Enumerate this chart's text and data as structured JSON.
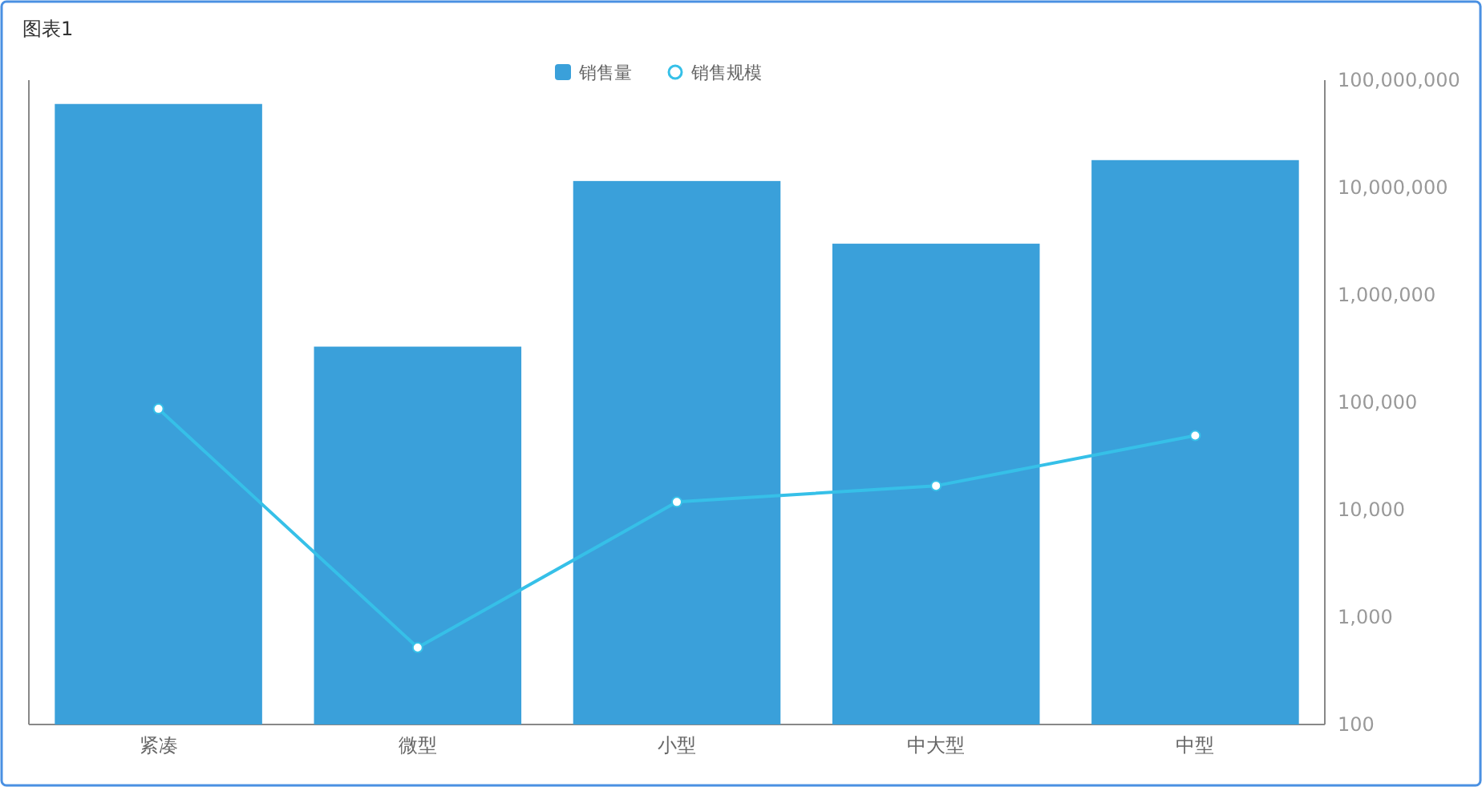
{
  "chart_data": {
    "type": "bar",
    "title": "图表1",
    "categories": [
      "紧凑",
      "微型",
      "小型",
      "中大型",
      "中型"
    ],
    "series": [
      {
        "name": "销售量",
        "color": "#3aa0da",
        "values": [
          60000000,
          330000,
          11500000,
          3000000,
          18000000
        ]
      },
      {
        "name": "销售规模",
        "type": "line",
        "color": "#36c0e8",
        "marker": "circle",
        "values": [
          87000,
          520,
          11800,
          16700,
          49000
        ]
      }
    ],
    "log": "y",
    "ylim": [
      100,
      100000000
    ],
    "yticks": [
      {
        "value": 100,
        "label": "100"
      },
      {
        "value": 1000,
        "label": "1,000"
      },
      {
        "value": 10000,
        "label": "10,000"
      },
      {
        "value": 100000,
        "label": "100,000"
      },
      {
        "value": 1000000,
        "label": "1,000,000"
      },
      {
        "value": 10000000,
        "label": "10,000,000"
      },
      {
        "value": 100000000,
        "label": "100,000,000"
      }
    ],
    "grid": false,
    "legend": "top"
  }
}
